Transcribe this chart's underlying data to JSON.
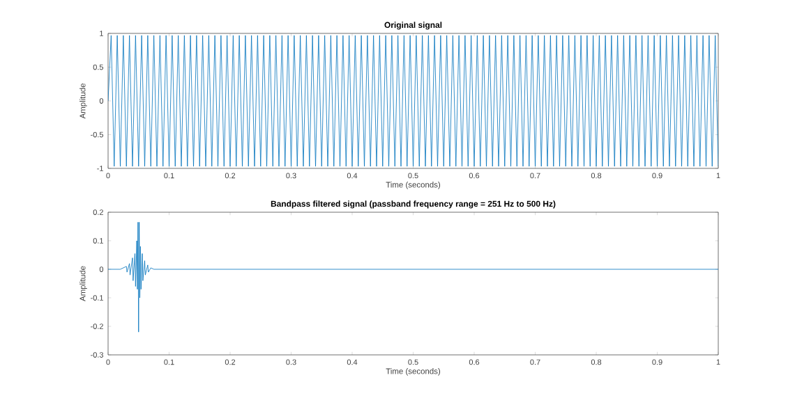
{
  "chart_data": [
    {
      "type": "line",
      "title": "Original signal",
      "xlabel": "Time (seconds)",
      "ylabel": "Amplitude",
      "color": "#0072bd",
      "xlim": [
        0,
        1
      ],
      "ylim": [
        -1,
        1
      ],
      "xticks": [
        0,
        0.1,
        0.2,
        0.3,
        0.4,
        0.5,
        0.6,
        0.7,
        0.8,
        0.9,
        1
      ],
      "yticks": [
        -1,
        -0.5,
        0,
        0.5,
        1
      ],
      "x": [
        0,
        0.005,
        0.01,
        0.015,
        0.02,
        0.025,
        0.03,
        0.035,
        0.04,
        0.045,
        0.05,
        0.055,
        0.06,
        0.065,
        0.07,
        0.075,
        0.08,
        0.085,
        0.09,
        0.095,
        0.1,
        0.105,
        0.11,
        0.115,
        0.12,
        0.125,
        0.13,
        0.135,
        0.14,
        0.145,
        0.15,
        0.155,
        0.16,
        0.165,
        0.17,
        0.175,
        0.18,
        0.185,
        0.19,
        0.195,
        0.2,
        0.205,
        0.21,
        0.215,
        0.22,
        0.225,
        0.23,
        0.235,
        0.24,
        0.245,
        0.25,
        0.255,
        0.26,
        0.265,
        0.27,
        0.275,
        0.28,
        0.285,
        0.29,
        0.295,
        0.3,
        0.305,
        0.31,
        0.315,
        0.32,
        0.325,
        0.33,
        0.335,
        0.34,
        0.345,
        0.35,
        0.355,
        0.36,
        0.365,
        0.37,
        0.375,
        0.38,
        0.385,
        0.39,
        0.395,
        0.4,
        0.405,
        0.41,
        0.415,
        0.42,
        0.425,
        0.43,
        0.435,
        0.44,
        0.445,
        0.45,
        0.455,
        0.46,
        0.465,
        0.47,
        0.475,
        0.48,
        0.485,
        0.49,
        0.495,
        0.5,
        0.505,
        0.51,
        0.515,
        0.52,
        0.525,
        0.53,
        0.535,
        0.54,
        0.545,
        0.55,
        0.555,
        0.56,
        0.565,
        0.57,
        0.575,
        0.58,
        0.585,
        0.59,
        0.595,
        0.6,
        0.605,
        0.61,
        0.615,
        0.62,
        0.625,
        0.63,
        0.635,
        0.64,
        0.645,
        0.65,
        0.655,
        0.66,
        0.665,
        0.67,
        0.675,
        0.68,
        0.685,
        0.69,
        0.695,
        0.7,
        0.705,
        0.71,
        0.715,
        0.72,
        0.725,
        0.73,
        0.735,
        0.74,
        0.745,
        0.75,
        0.755,
        0.76,
        0.765,
        0.77,
        0.775,
        0.78,
        0.785,
        0.79,
        0.795,
        0.8,
        0.805,
        0.81,
        0.815,
        0.82,
        0.825,
        0.83,
        0.835,
        0.84,
        0.845,
        0.85,
        0.855,
        0.86,
        0.865,
        0.87,
        0.875,
        0.88,
        0.885,
        0.89,
        0.895,
        0.9,
        0.905,
        0.91,
        0.915,
        0.92,
        0.925,
        0.93,
        0.935,
        0.94,
        0.945,
        0.95,
        0.955,
        0.96,
        0.965,
        0.97,
        0.975,
        0.98,
        0.985,
        0.99,
        0.995,
        1
      ],
      "values": [
        0,
        0.97,
        -0.97,
        0.97,
        -0.97,
        0.97,
        -0.97,
        0.97,
        -0.97,
        0.97,
        -0.97,
        0.97,
        -0.97,
        0.97,
        -0.97,
        0.97,
        -0.97,
        0.97,
        -0.97,
        0.97,
        -0.97,
        0.97,
        -0.97,
        0.97,
        -0.97,
        0.97,
        -0.97,
        0.97,
        -0.97,
        0.97,
        -0.97,
        0.97,
        -0.97,
        0.97,
        -0.97,
        0.97,
        -0.97,
        0.97,
        -0.97,
        0.97,
        -0.97,
        0.97,
        -0.97,
        0.97,
        -0.97,
        0.97,
        -0.97,
        0.97,
        -0.97,
        0.97,
        -0.97,
        0.97,
        -0.97,
        0.97,
        -0.97,
        0.97,
        -0.97,
        0.97,
        -0.97,
        0.97,
        -0.97,
        0.97,
        -0.97,
        0.97,
        -0.97,
        0.97,
        -0.97,
        0.97,
        -0.97,
        0.97,
        -0.97,
        0.97,
        -0.97,
        0.97,
        -0.97,
        0.97,
        -0.97,
        0.97,
        -0.97,
        0.97,
        -0.97,
        0.97,
        -0.97,
        0.97,
        -0.97,
        0.97,
        -0.97,
        0.97,
        -0.97,
        0.97,
        -0.97,
        0.97,
        -0.97,
        0.97,
        -0.97,
        0.97,
        -0.97,
        0.97,
        -0.97,
        0.97,
        -0.97,
        0.97,
        -0.97,
        0.97,
        -0.97,
        0.97,
        -0.97,
        0.97,
        -0.97,
        0.97,
        -0.97,
        0.97,
        -0.97,
        0.97,
        -0.97,
        0.97,
        -0.97,
        0.97,
        -0.97,
        0.97,
        -0.97,
        0.97,
        -0.97,
        0.97,
        -0.97,
        0.97,
        -0.97,
        0.97,
        -0.97,
        0.97,
        -0.97,
        0.97,
        -0.97,
        0.97,
        -0.97,
        0.97,
        -0.97,
        0.97,
        -0.97,
        0.97,
        -0.97,
        0.97,
        -0.97,
        0.97,
        -0.97,
        0.97,
        -0.97,
        0.97,
        -0.97,
        0.97,
        -0.97,
        0.97,
        -0.97,
        0.97,
        -0.97,
        0.97,
        -0.97,
        0.97,
        -0.97,
        0.97,
        -0.97,
        0.97,
        -0.97,
        0.97,
        -0.97,
        0.97,
        -0.97,
        0.97,
        -0.97,
        0.97,
        -0.97,
        0.97,
        -0.97,
        0.97,
        -0.97,
        0.97,
        -0.97,
        0.97,
        -0.97,
        0.97,
        -0.97,
        0.97,
        -0.97,
        0.97,
        -0.97,
        0.97,
        -0.97,
        0.97,
        -0.97,
        0.97,
        -0.97,
        0.97,
        -0.97,
        0.97,
        -0.97,
        0.97,
        -0.97,
        0.97,
        -0.97,
        0.97,
        -0.97
      ]
    },
    {
      "type": "line",
      "title": "Bandpass filtered signal (passband frequency range = 251 Hz to 500 Hz)",
      "xlabel": "Time (seconds)",
      "ylabel": "Amplitude",
      "color": "#0072bd",
      "xlim": [
        0,
        1
      ],
      "ylim": [
        -0.3,
        0.2
      ],
      "xticks": [
        0,
        0.1,
        0.2,
        0.3,
        0.4,
        0.5,
        0.6,
        0.7,
        0.8,
        0.9,
        1
      ],
      "yticks": [
        -0.3,
        -0.2,
        -0.1,
        0,
        0.1,
        0.2
      ],
      "x": [
        0,
        0.02,
        0.03,
        0.031,
        0.035,
        0.036,
        0.04,
        0.041,
        0.044,
        0.045,
        0.047,
        0.048,
        0.049,
        0.05,
        0.051,
        0.052,
        0.053,
        0.054,
        0.056,
        0.057,
        0.06,
        0.061,
        0.065,
        0.066,
        0.07,
        0.075,
        1
      ],
      "values": [
        0,
        0,
        0.01,
        -0.01,
        0.02,
        -0.02,
        0.04,
        -0.04,
        0.055,
        -0.06,
        0.1,
        -0.07,
        0.165,
        -0.22,
        0.165,
        -0.1,
        0.08,
        -0.07,
        0.055,
        -0.04,
        0.03,
        -0.02,
        0.015,
        -0.01,
        0.005,
        0,
        0
      ]
    }
  ]
}
